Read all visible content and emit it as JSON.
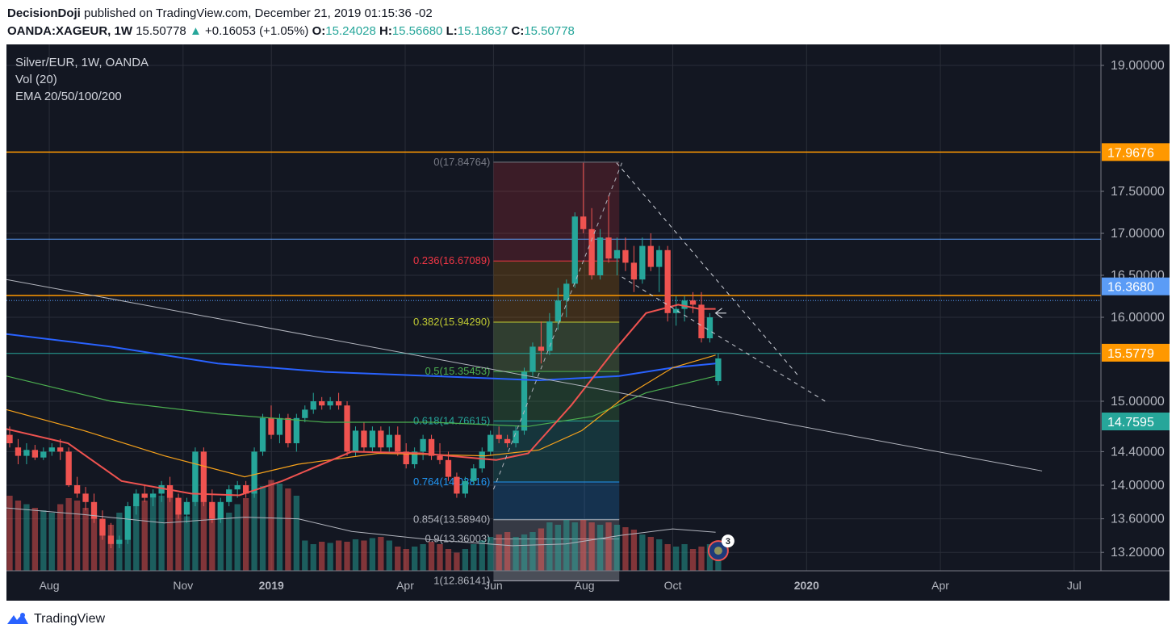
{
  "header": {
    "publisher": "DecisionDoji",
    "published_text": " published on TradingView.com, December 21, 2019 01:15:36 -02",
    "symbol": "OANDA:XAGEUR, 1W",
    "price": "15.50778",
    "change": "+0.16053 (+1.05%)",
    "open_label": "O:",
    "open": "15.24028",
    "high_label": "H:",
    "high": "15.56680",
    "low_label": "L:",
    "low": "15.18637",
    "close_label": "C:",
    "close": "15.50778"
  },
  "legend": {
    "title": "Silver/EUR, 1W, OANDA",
    "vol": "Vol (20)",
    "ema": "EMA 20/50/100/200"
  },
  "colors": {
    "background": "#131722",
    "up": "#26a69a",
    "down": "#ef5350",
    "ema20": "#ef5350",
    "ema50": "#f7a21b",
    "ema100": "#4caf50",
    "ema200": "#2962ff",
    "orange_line": "#ff9800",
    "blue_line": "#5b9cf6"
  },
  "footer": {
    "brand": "TradingView",
    "logo_icon": "tradingview-logo-icon"
  },
  "chart_data": {
    "type": "candlestick",
    "symbol": "OANDA:XAGEUR",
    "timeframe": "1W",
    "title": "Silver/EUR, 1W, OANDA",
    "x_labels": [
      {
        "label": "Aug",
        "x": 2018.585
      },
      {
        "label": "Nov",
        "x": 2018.835
      },
      {
        "label": "2019",
        "x": 2019.0
      },
      {
        "label": "Apr",
        "x": 2019.25
      },
      {
        "label": "Jun",
        "x": 2019.415
      },
      {
        "label": "Aug",
        "x": 2019.585
      },
      {
        "label": "Oct",
        "x": 2019.75
      },
      {
        "label": "2020",
        "x": 2020.0
      },
      {
        "label": "Apr",
        "x": 2020.25
      },
      {
        "label": "Jul",
        "x": 2020.5
      }
    ],
    "xlim": [
      2018.505,
      2020.55
    ],
    "y_ticks": [
      "19.00000",
      "17.50000",
      "17.00000",
      "16.50000",
      "16.00000",
      "15.00000",
      "14.40000",
      "14.00000",
      "13.60000",
      "13.20000"
    ],
    "y_tick_values": [
      19.0,
      17.5,
      17.0,
      16.5,
      16.0,
      15.0,
      14.4,
      14.0,
      13.6,
      13.2
    ],
    "price_scale_knots": [
      [
        19.0,
        0.0
      ],
      [
        17.5,
        1.5
      ],
      [
        17.0,
        2.0
      ],
      [
        16.0,
        3.0
      ],
      [
        15.0,
        4.0
      ],
      [
        14.4,
        4.6
      ],
      [
        14.0,
        5.0
      ],
      [
        13.6,
        5.4
      ],
      [
        13.2,
        5.8
      ]
    ],
    "price_labels": [
      {
        "value": 17.9676,
        "text": "17.9676",
        "color": "#ff9800"
      },
      {
        "value": 16.368,
        "text": "16.3680",
        "color": "#5b9cf6"
      },
      {
        "value": 15.5779,
        "text": "15.5779",
        "color": "#ff9800"
      },
      {
        "value": 14.7595,
        "text": "14.7595",
        "color": "#26a69a"
      }
    ],
    "horizontal_lines": [
      {
        "value": 17.9676,
        "color": "#ff9800"
      },
      {
        "value": 16.93,
        "color": "#5b9cf6"
      },
      {
        "value": 16.26,
        "color": "#ff9800"
      },
      {
        "value": 15.57,
        "color": "#26a69a"
      }
    ],
    "fibonacci": {
      "x_start": 2019.415,
      "x_end": 2019.65,
      "levels": [
        {
          "ratio": "0",
          "price": "17.84764",
          "value": 17.84764,
          "color": "#787b86"
        },
        {
          "ratio": "0.236",
          "price": "16.67089",
          "value": 16.67089,
          "color": "#f23645"
        },
        {
          "ratio": "0.382",
          "price": "15.94290",
          "value": 15.9429,
          "color": "#c0ca33"
        },
        {
          "ratio": "0.5",
          "price": "15.35453",
          "value": 15.35453,
          "color": "#4caf50"
        },
        {
          "ratio": "0.618",
          "price": "14.76615",
          "value": 14.76615,
          "color": "#26a69a"
        },
        {
          "ratio": "0.764",
          "price": "14.03816",
          "value": 14.03816,
          "color": "#2196f3"
        },
        {
          "ratio": "0.854",
          "price": "13.58940",
          "value": 13.5894,
          "color": "#b2b5be"
        },
        {
          "ratio": "0.9",
          "price": "13.36003",
          "value": 13.36003,
          "color": "#b2b5be"
        },
        {
          "ratio": "1",
          "price": "12.86141",
          "value": 12.86141,
          "color": "#b2b5be"
        }
      ]
    },
    "trendlines": [
      {
        "from": [
          2018.505,
          16.45
        ],
        "to": [
          2020.44,
          14.17
        ],
        "color": "#b2b5be",
        "dash": false
      },
      {
        "from": [
          2019.645,
          17.84
        ],
        "to": [
          2019.985,
          15.3
        ],
        "color": "#d1d4dc",
        "dash": true
      },
      {
        "from": [
          2019.655,
          16.48
        ],
        "to": [
          2020.04,
          14.98
        ],
        "color": "#d1d4dc",
        "dash": true
      },
      {
        "from": [
          2019.415,
          13.95
        ],
        "to": [
          2019.655,
          17.84
        ],
        "color": "#b2b5be",
        "dash": true
      }
    ],
    "candles_weekly_approx": [
      [
        14.6,
        14.7,
        14.45,
        14.5
      ],
      [
        14.45,
        14.55,
        14.25,
        14.35
      ],
      [
        14.35,
        14.5,
        14.25,
        14.42
      ],
      [
        14.42,
        14.48,
        14.3,
        14.33
      ],
      [
        14.33,
        14.45,
        14.3,
        14.4
      ],
      [
        14.4,
        14.5,
        14.35,
        14.45
      ],
      [
        14.45,
        14.55,
        14.3,
        14.4
      ],
      [
        14.4,
        14.45,
        13.98,
        14.0
      ],
      [
        14.0,
        14.1,
        13.85,
        13.9
      ],
      [
        13.9,
        13.98,
        13.7,
        13.8
      ],
      [
        13.8,
        13.9,
        13.55,
        13.6
      ],
      [
        13.6,
        13.7,
        13.35,
        13.4
      ],
      [
        13.4,
        13.55,
        13.25,
        13.3
      ],
      [
        13.3,
        13.4,
        13.25,
        13.35
      ],
      [
        13.35,
        13.8,
        13.3,
        13.75
      ],
      [
        13.75,
        13.95,
        13.65,
        13.9
      ],
      [
        13.9,
        14.0,
        13.8,
        13.85
      ],
      [
        13.85,
        13.95,
        13.75,
        13.9
      ],
      [
        13.9,
        14.05,
        13.8,
        14.0
      ],
      [
        14.0,
        14.1,
        13.8,
        13.85
      ],
      [
        13.85,
        13.9,
        13.6,
        13.65
      ],
      [
        13.65,
        13.85,
        13.55,
        13.8
      ],
      [
        13.8,
        14.45,
        13.75,
        14.4
      ],
      [
        14.4,
        14.45,
        13.75,
        13.8
      ],
      [
        13.8,
        13.95,
        13.55,
        13.6
      ],
      [
        13.6,
        13.85,
        13.55,
        13.8
      ],
      [
        13.8,
        14.0,
        13.75,
        13.95
      ],
      [
        13.95,
        14.05,
        13.85,
        14.0
      ],
      [
        14.0,
        14.05,
        13.85,
        13.9
      ],
      [
        13.9,
        14.45,
        13.85,
        14.4
      ],
      [
        14.4,
        14.85,
        14.35,
        14.8
      ],
      [
        14.8,
        14.95,
        14.55,
        14.6
      ],
      [
        14.6,
        14.85,
        14.5,
        14.8
      ],
      [
        14.8,
        14.85,
        14.45,
        14.5
      ],
      [
        14.5,
        14.85,
        14.4,
        14.8
      ],
      [
        14.8,
        14.95,
        14.75,
        14.9
      ],
      [
        14.9,
        15.1,
        14.85,
        15.0
      ],
      [
        15.0,
        15.05,
        14.9,
        14.95
      ],
      [
        14.95,
        15.05,
        14.9,
        15.0
      ],
      [
        15.0,
        15.1,
        14.9,
        14.95
      ],
      [
        14.95,
        15.0,
        14.35,
        14.4
      ],
      [
        14.4,
        14.7,
        14.35,
        14.65
      ],
      [
        14.65,
        14.75,
        14.4,
        14.45
      ],
      [
        14.45,
        14.7,
        14.4,
        14.65
      ],
      [
        14.65,
        14.7,
        14.4,
        14.45
      ],
      [
        14.45,
        14.7,
        14.4,
        14.6
      ],
      [
        14.6,
        14.7,
        14.35,
        14.4
      ],
      [
        14.4,
        14.5,
        14.2,
        14.25
      ],
      [
        14.25,
        14.45,
        14.2,
        14.4
      ],
      [
        14.4,
        14.6,
        14.3,
        14.55
      ],
      [
        14.55,
        14.6,
        14.3,
        14.35
      ],
      [
        14.35,
        14.5,
        14.25,
        14.3
      ],
      [
        14.3,
        14.4,
        14.05,
        14.1
      ],
      [
        14.1,
        14.15,
        13.85,
        13.9
      ],
      [
        13.9,
        14.1,
        13.85,
        14.05
      ],
      [
        14.05,
        14.25,
        14.0,
        14.2
      ],
      [
        14.2,
        14.45,
        14.15,
        14.4
      ],
      [
        14.4,
        14.65,
        14.35,
        14.6
      ],
      [
        14.6,
        14.7,
        14.5,
        14.55
      ],
      [
        14.55,
        14.6,
        14.45,
        14.5
      ],
      [
        14.5,
        14.7,
        14.45,
        14.65
      ],
      [
        14.65,
        15.4,
        14.6,
        15.35
      ],
      [
        15.35,
        15.7,
        15.3,
        15.65
      ],
      [
        15.65,
        15.95,
        15.45,
        15.6
      ],
      [
        15.6,
        16.05,
        15.55,
        15.95
      ],
      [
        15.95,
        16.35,
        15.85,
        16.2
      ],
      [
        16.2,
        16.45,
        16.0,
        16.4
      ],
      [
        16.4,
        17.25,
        16.35,
        17.2
      ],
      [
        17.2,
        17.84,
        17.0,
        17.05
      ],
      [
        17.05,
        17.3,
        16.45,
        16.5
      ],
      [
        16.5,
        17.05,
        16.45,
        16.95
      ],
      [
        16.95,
        17.45,
        16.65,
        16.7
      ],
      [
        16.7,
        16.95,
        16.5,
        16.8
      ],
      [
        16.8,
        16.95,
        16.55,
        16.65
      ],
      [
        16.65,
        16.85,
        16.3,
        16.45
      ],
      [
        16.45,
        16.95,
        16.4,
        16.85
      ],
      [
        16.85,
        17.0,
        16.55,
        16.6
      ],
      [
        16.6,
        16.85,
        16.3,
        16.8
      ],
      [
        16.8,
        16.85,
        15.95,
        16.05
      ],
      [
        16.05,
        16.25,
        15.9,
        16.1
      ],
      [
        16.1,
        16.25,
        15.95,
        16.2
      ],
      [
        16.2,
        16.3,
        16.05,
        16.15
      ],
      [
        16.15,
        16.3,
        15.7,
        15.75
      ],
      [
        15.75,
        16.05,
        15.7,
        16.0
      ],
      [
        15.24,
        15.57,
        15.19,
        15.51
      ]
    ],
    "volume_relative_approx": [
      0.62,
      0.58,
      0.55,
      0.52,
      0.5,
      0.48,
      0.55,
      0.6,
      0.58,
      0.52,
      0.45,
      0.42,
      0.38,
      0.48,
      0.52,
      0.55,
      0.58,
      0.6,
      0.62,
      0.65,
      0.5,
      0.45,
      0.95,
      0.6,
      0.52,
      0.5,
      0.48,
      0.55,
      0.6,
      0.65,
      0.7,
      0.75,
      0.72,
      0.68,
      0.62,
      0.25,
      0.22,
      0.24,
      0.23,
      0.25,
      0.24,
      0.26,
      0.25,
      0.27,
      0.28,
      0.25,
      0.2,
      0.18,
      0.2,
      0.22,
      0.24,
      0.22,
      0.18,
      0.15,
      0.18,
      0.22,
      0.25,
      0.28,
      0.3,
      0.32,
      0.28,
      0.3,
      0.32,
      0.35,
      0.4,
      0.38,
      0.42,
      0.4,
      0.42,
      0.4,
      0.38,
      0.4,
      0.38,
      0.36,
      0.34,
      0.3,
      0.28,
      0.26,
      0.22,
      0.2,
      0.22,
      0.18,
      0.2,
      0.22,
      0.12
    ],
    "ema_paths_approx": {
      "ema20": [
        [
          2018.505,
          14.67
        ],
        [
          2018.62,
          14.5
        ],
        [
          2018.72,
          14.05
        ],
        [
          2018.85,
          13.9
        ],
        [
          2018.94,
          13.88
        ],
        [
          2019.02,
          14.05
        ],
        [
          2019.15,
          14.4
        ],
        [
          2019.28,
          14.38
        ],
        [
          2019.42,
          14.3
        ],
        [
          2019.48,
          14.38
        ],
        [
          2019.56,
          14.95
        ],
        [
          2019.64,
          15.6
        ],
        [
          2019.7,
          16.05
        ],
        [
          2019.76,
          16.15
        ],
        [
          2019.8,
          16.1
        ],
        [
          2019.83,
          16.1
        ]
      ],
      "ema50": [
        [
          2018.505,
          14.9
        ],
        [
          2018.65,
          14.65
        ],
        [
          2018.8,
          14.35
        ],
        [
          2018.95,
          14.1
        ],
        [
          2019.05,
          14.25
        ],
        [
          2019.2,
          14.38
        ],
        [
          2019.4,
          14.35
        ],
        [
          2019.5,
          14.42
        ],
        [
          2019.58,
          14.65
        ],
        [
          2019.66,
          15.05
        ],
        [
          2019.75,
          15.4
        ],
        [
          2019.83,
          15.55
        ]
      ],
      "ema100": [
        [
          2018.505,
          15.3
        ],
        [
          2018.7,
          15.0
        ],
        [
          2018.9,
          14.85
        ],
        [
          2019.1,
          14.75
        ],
        [
          2019.3,
          14.75
        ],
        [
          2019.48,
          14.7
        ],
        [
          2019.6,
          14.82
        ],
        [
          2019.7,
          15.1
        ],
        [
          2019.83,
          15.3
        ]
      ],
      "ema200": [
        [
          2018.505,
          15.8
        ],
        [
          2018.7,
          15.65
        ],
        [
          2018.9,
          15.45
        ],
        [
          2019.1,
          15.35
        ],
        [
          2019.3,
          15.3
        ],
        [
          2019.5,
          15.25
        ],
        [
          2019.65,
          15.3
        ],
        [
          2019.75,
          15.4
        ],
        [
          2019.83,
          15.45
        ]
      ]
    },
    "volume_ma_approx": [
      [
        2018.505,
        13.73
      ],
      [
        2018.65,
        13.65
      ],
      [
        2018.8,
        13.55
      ],
      [
        2018.95,
        13.62
      ],
      [
        2019.05,
        13.6
      ],
      [
        2019.15,
        13.45
      ],
      [
        2019.3,
        13.35
      ],
      [
        2019.45,
        13.28
      ],
      [
        2019.55,
        13.3
      ],
      [
        2019.65,
        13.4
      ],
      [
        2019.75,
        13.48
      ],
      [
        2019.83,
        13.44
      ]
    ],
    "marker": {
      "x": 2019.835,
      "y": 13.22,
      "badge": "3"
    },
    "arrow_annotation": {
      "from": [
        2019.85,
        16.05
      ],
      "to": [
        2019.83,
        16.05
      ]
    },
    "grid": true,
    "legend_position": "top-left"
  }
}
